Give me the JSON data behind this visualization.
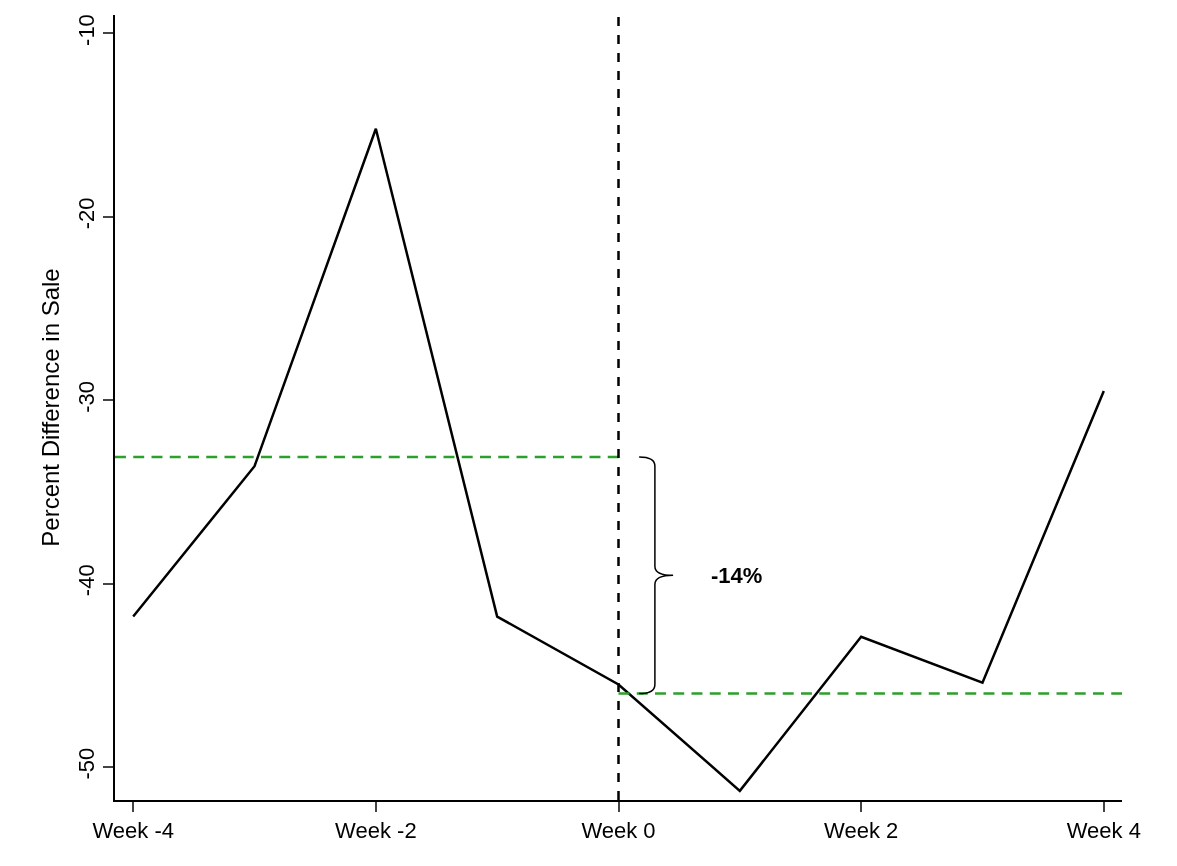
{
  "chart_data": {
    "type": "line",
    "ylabel": "Percent Difference in Sale",
    "xlim": [
      -4.15,
      4.15
    ],
    "xticks": [
      {
        "value": -4,
        "label": "Week -4"
      },
      {
        "value": -2,
        "label": "Week -2"
      },
      {
        "value": 0,
        "label": "Week 0"
      },
      {
        "value": 2,
        "label": "Week 2"
      },
      {
        "value": 4,
        "label": "Week 4"
      }
    ],
    "ylim": [
      -51.8,
      -9
    ],
    "yticks": [
      -10,
      -20,
      -30,
      -40,
      -50
    ],
    "series": [
      {
        "color": "#000000",
        "x": [
          -4,
          -3,
          -2,
          -1,
          0,
          1,
          2,
          3,
          4
        ],
        "values": [
          -41.8,
          -33.6,
          -15.2,
          -41.8,
          -45.5,
          -51.3,
          -42.9,
          -45.4,
          -29.5
        ],
        "line_style": "solid"
      },
      {
        "color": "#2ca02c",
        "x": [
          -4.15,
          0
        ],
        "values": [
          -33.1,
          -33.1
        ],
        "line_style": "dashed"
      },
      {
        "color": "#2ca02c",
        "x": [
          0,
          4.15
        ],
        "values": [
          -46,
          -46
        ],
        "line_style": "dashed"
      }
    ],
    "ref_lines": [
      {
        "axis": "x",
        "value": 0,
        "color": "#000000",
        "line_style": "dashed"
      }
    ],
    "annotations": [
      "-14%"
    ],
    "grid": false,
    "marker": "none"
  }
}
